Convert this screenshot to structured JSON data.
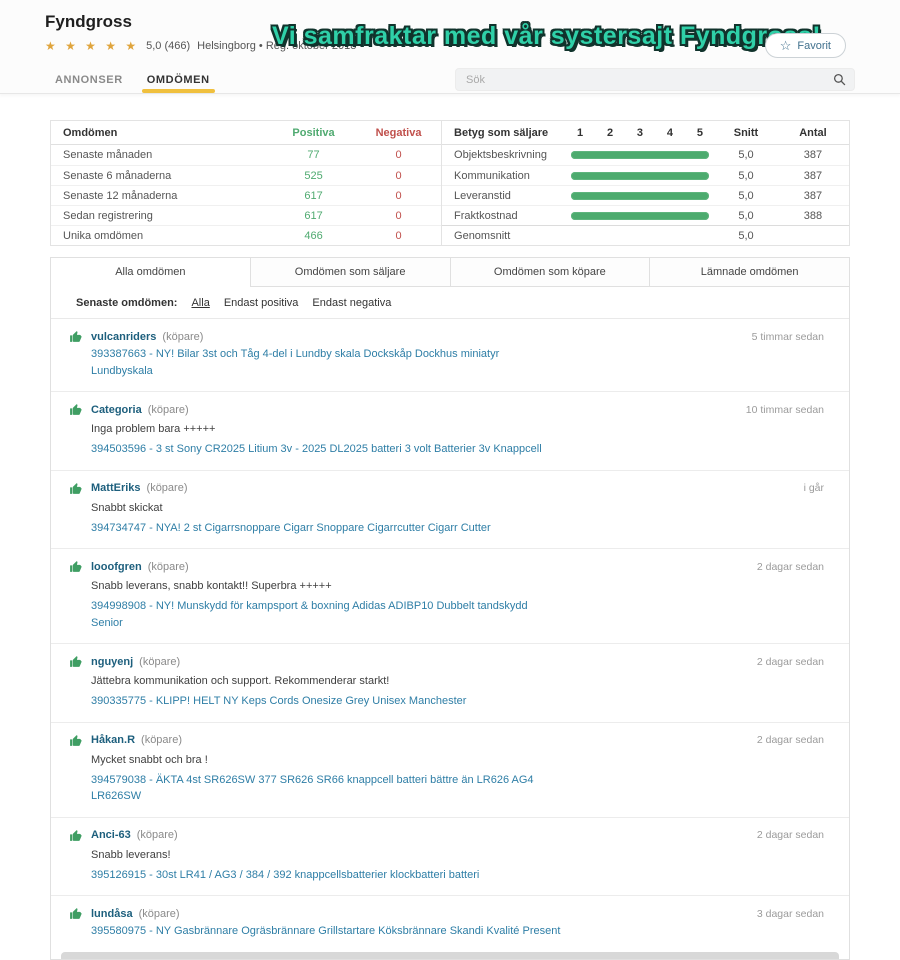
{
  "header": {
    "title": "Fyndgross",
    "stars": "★ ★ ★ ★ ★",
    "rating_line": "5,0 (466)",
    "meta_line": "Helsingborg • Reg. oktober 2018",
    "banner": "Vi samfraktar med vår systersajt Fyndgross!",
    "favorite_label": "Favorit",
    "favorite_star_icon": "☆"
  },
  "nav": {
    "tabs": [
      {
        "label": "ANNONSER",
        "active": false
      },
      {
        "label": "OMDÖMEN",
        "active": true
      }
    ],
    "search_placeholder": "Sök",
    "search_icon": "magnifier"
  },
  "summary": {
    "left_table": {
      "headers": [
        "Omdömen",
        "Positiva",
        "Negativa"
      ],
      "rows": [
        {
          "label": "Senaste månaden",
          "positive": "77",
          "negative": "0"
        },
        {
          "label": "Senaste 6 månaderna",
          "positive": "525",
          "negative": "0"
        },
        {
          "label": "Senaste 12 månaderna",
          "positive": "617",
          "negative": "0"
        },
        {
          "label": "Sedan registrering",
          "positive": "617",
          "negative": "0"
        },
        {
          "label": "Unika omdömen",
          "positive": "466",
          "negative": "0"
        }
      ]
    },
    "right_table": {
      "title": "Betyg som säljare",
      "scale": [
        "1",
        "2",
        "3",
        "4",
        "5"
      ],
      "snitt_header": "Snitt",
      "antal_header": "Antal",
      "rows": [
        {
          "label": "Objektsbeskrivning",
          "bar_value": 5,
          "bar_max": 5,
          "snitt": "5,0",
          "antal": "387"
        },
        {
          "label": "Kommunikation",
          "bar_value": 5,
          "bar_max": 5,
          "snitt": "5,0",
          "antal": "387"
        },
        {
          "label": "Leveranstid",
          "bar_value": 5,
          "bar_max": 5,
          "snitt": "5,0",
          "antal": "387"
        },
        {
          "label": "Fraktkostnad",
          "bar_value": 5,
          "bar_max": 5,
          "snitt": "5,0",
          "antal": "388"
        }
      ],
      "footer": {
        "label": "Genomsnitt",
        "snitt": "5,0",
        "antal": ""
      }
    }
  },
  "review_tabs": [
    {
      "label": "Alla omdömen",
      "active": true
    },
    {
      "label": "Omdömen som säljare",
      "active": false
    },
    {
      "label": "Omdömen som köpare",
      "active": false
    },
    {
      "label": "Lämnade omdömen",
      "active": false
    }
  ],
  "filter": {
    "label": "Senaste omdömen:",
    "options": [
      {
        "label": "Alla",
        "active": true
      },
      {
        "label": "Endast positiva",
        "active": false
      },
      {
        "label": "Endast negativa",
        "active": false
      }
    ]
  },
  "reviews": [
    {
      "user": "vulcanriders",
      "role": "(köpare)",
      "time": "5 timmar sedan",
      "comment": "",
      "link": "393387663 - NY! Bilar 3st och Tåg 4-del i Lundby skala Dockskåp Dockhus miniatyr Lundbyskala"
    },
    {
      "user": "Categoria",
      "role": "(köpare)",
      "time": "10 timmar sedan",
      "comment": "Inga problem bara +++++",
      "link": "394503596 - 3 st Sony CR2025 Litium 3v - 2025 DL2025 batteri 3 volt Batterier 3v Knappcell"
    },
    {
      "user": "MattEriks",
      "role": "(köpare)",
      "time": "i går",
      "comment": "Snabbt skickat",
      "link": "394734747 - NYA! 2 st Cigarrsnoppare Cigarr Snoppare Cigarrcutter Cigarr Cutter"
    },
    {
      "user": "looofgren",
      "role": "(köpare)",
      "time": "2 dagar sedan",
      "comment": "Snabb leverans, snabb kontakt!! Superbra +++++",
      "link": "394998908 - NY! Munskydd för kampsport & boxning Adidas ADIBP10 Dubbelt tandskydd Senior"
    },
    {
      "user": "nguyenj",
      "role": "(köpare)",
      "time": "2 dagar sedan",
      "comment": "Jättebra kommunikation och support. Rekommenderar starkt!",
      "link": "390335775 - KLIPP! HELT NY Keps Cords Onesize Grey Unisex Manchester"
    },
    {
      "user": "Håkan.R",
      "role": "(köpare)",
      "time": "2 dagar sedan",
      "comment": "Mycket snabbt och bra !",
      "link": "394579038 - ÄKTA 4st SR626SW 377 SR626 SR66 knappcell batteri bättre än LR626 AG4 LR626SW"
    },
    {
      "user": "Anci-63",
      "role": "(köpare)",
      "time": "2 dagar sedan",
      "comment": "Snabb leverans!",
      "link": "395126915 - 30st LR41 / AG3 / 384 / 392 knappcellsbatterier klockbatteri batteri"
    },
    {
      "user": "lundåsa",
      "role": "(köpare)",
      "time": "3 dagar sedan",
      "comment": "",
      "link": "395580975 - NY Gasbrännare Ogräsbrännare Grillstartare Köksbrännare Skandi Kvalité Present"
    }
  ],
  "colors": {
    "accent_green": "#4faa70",
    "bar_green": "#4cab6e",
    "accent_red": "#c0504c",
    "tab_underline_gold": "#f0c03e",
    "banner_teal": "#2fd0a8",
    "link_blue": "#2e7ea6",
    "username_blue": "#1d5f7d",
    "star_gold": "#dfa43c",
    "thumb_green": "#3f9e63"
  }
}
